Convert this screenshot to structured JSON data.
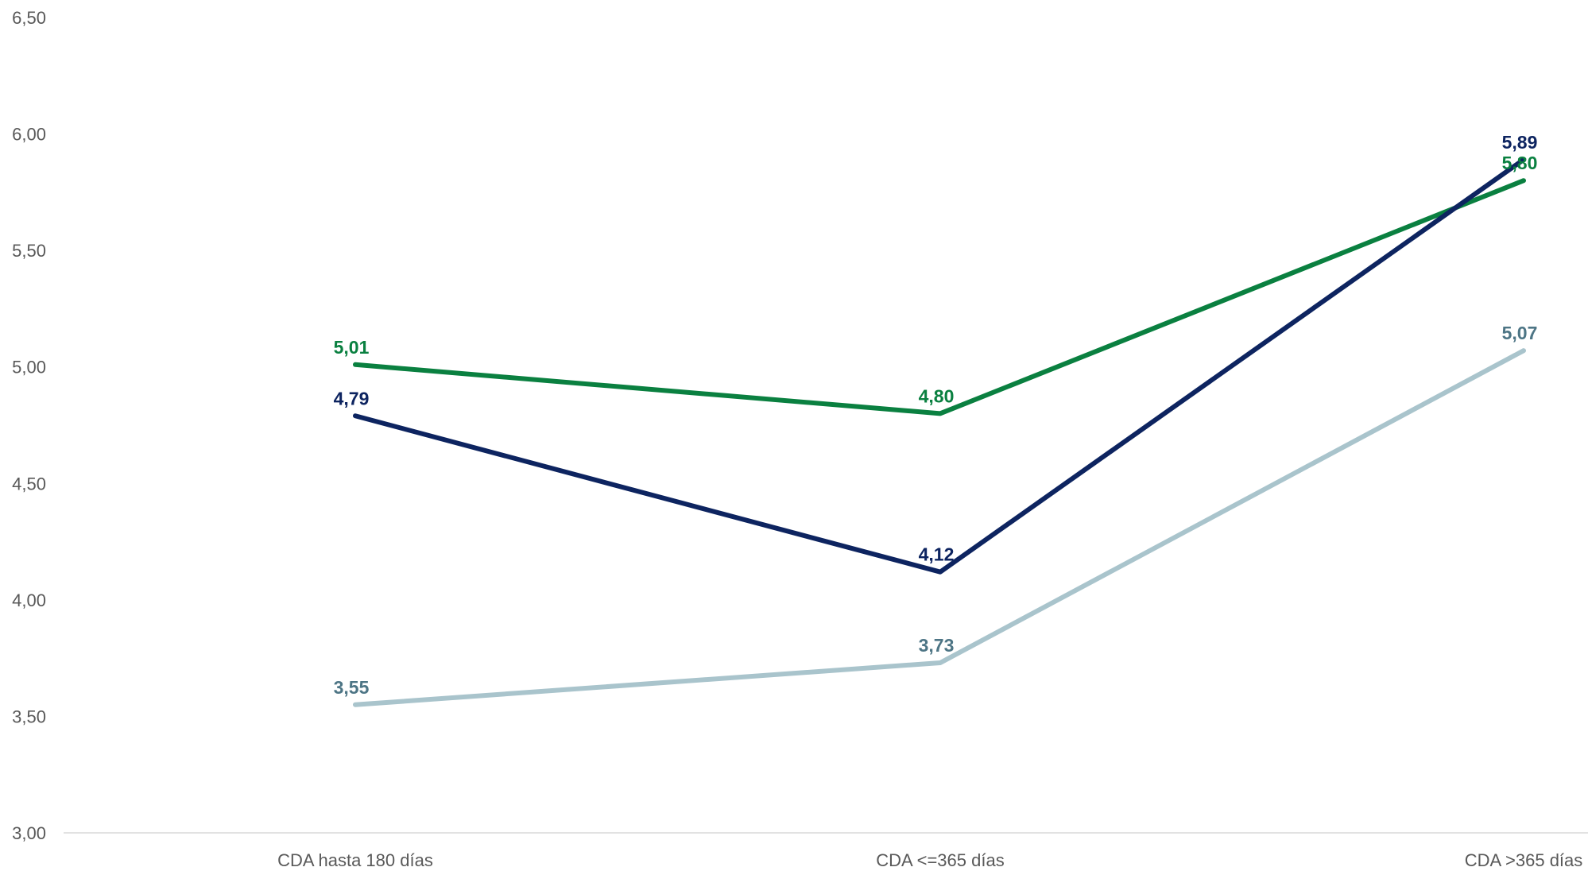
{
  "chart_data": {
    "type": "line",
    "categories": [
      "CDA hasta 180 días",
      "CDA <=365 días",
      "CDA >365 días"
    ],
    "series": [
      {
        "values": [
          5.01,
          4.8,
          5.8
        ],
        "labels": [
          "5,01",
          "4,80",
          "5,80"
        ],
        "color": "#0a8040"
      },
      {
        "values": [
          4.79,
          4.12,
          5.89
        ],
        "labels": [
          "4,79",
          "4,12",
          "5,89"
        ],
        "color": "#0d2460"
      },
      {
        "values": [
          3.55,
          3.73,
          5.07
        ],
        "labels": [
          "3,55",
          "3,73",
          "5,07"
        ],
        "color": "#a9c4cc",
        "label_color": "#4d7585"
      }
    ],
    "ylim": [
      3.0,
      6.5
    ],
    "yticks": [
      "3,00",
      "3,50",
      "4,00",
      "4,50",
      "5,00",
      "5,50",
      "6,00",
      "6,50"
    ],
    "title": "",
    "xlabel": "",
    "ylabel": "",
    "grid": false,
    "legend": "none"
  }
}
